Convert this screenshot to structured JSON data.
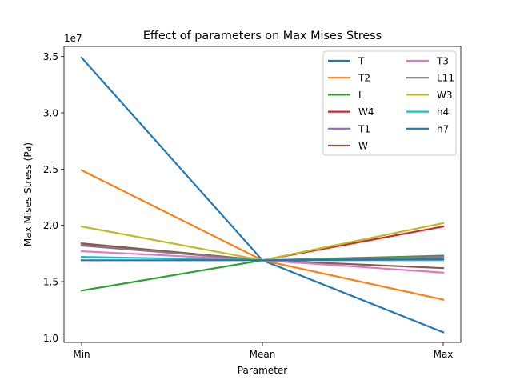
{
  "chart_data": {
    "type": "line",
    "title": "Effect of parameters on Max Mises Stress",
    "xlabel": "Parameter",
    "ylabel": "Max Mises Stress (Pa)",
    "y_offset_label": "1e7",
    "categories": [
      "Min",
      "Mean",
      "Max"
    ],
    "ylim": [
      0.96,
      3.59
    ],
    "yticks": [
      1.0,
      1.5,
      2.0,
      2.5,
      3.0,
      3.5
    ],
    "ytick_labels": [
      "1.0",
      "1.5",
      "2.0",
      "2.5",
      "3.0",
      "3.5"
    ],
    "grid": false,
    "legend": {
      "placement": "top-right",
      "columns": 2
    },
    "series": [
      {
        "name": "T",
        "color": "#1f77b4",
        "values": [
          3.49,
          1.69,
          1.05
        ]
      },
      {
        "name": "T2",
        "color": "#ff7f0e",
        "values": [
          2.49,
          1.69,
          1.34
        ]
      },
      {
        "name": "L",
        "color": "#2ca02c",
        "values": [
          1.42,
          1.69,
          1.73
        ]
      },
      {
        "name": "W4",
        "color": "#d62728",
        "values": [
          1.83,
          1.69,
          1.99
        ]
      },
      {
        "name": "T1",
        "color": "#9467bd",
        "values": [
          1.83,
          1.69,
          1.72
        ]
      },
      {
        "name": "W",
        "color": "#8c564b",
        "values": [
          1.84,
          1.69,
          1.62
        ]
      },
      {
        "name": "T3",
        "color": "#e377c2",
        "values": [
          1.77,
          1.69,
          1.58
        ]
      },
      {
        "name": "L11",
        "color": "#7f7f7f",
        "values": [
          1.82,
          1.69,
          1.72
        ]
      },
      {
        "name": "W3",
        "color": "#bcbd22",
        "values": [
          1.99,
          1.69,
          2.02
        ]
      },
      {
        "name": "h4",
        "color": "#17becf",
        "values": [
          1.72,
          1.69,
          1.69
        ]
      },
      {
        "name": "h7",
        "color": "#1f77b4",
        "values": [
          1.69,
          1.69,
          1.7
        ]
      }
    ]
  }
}
